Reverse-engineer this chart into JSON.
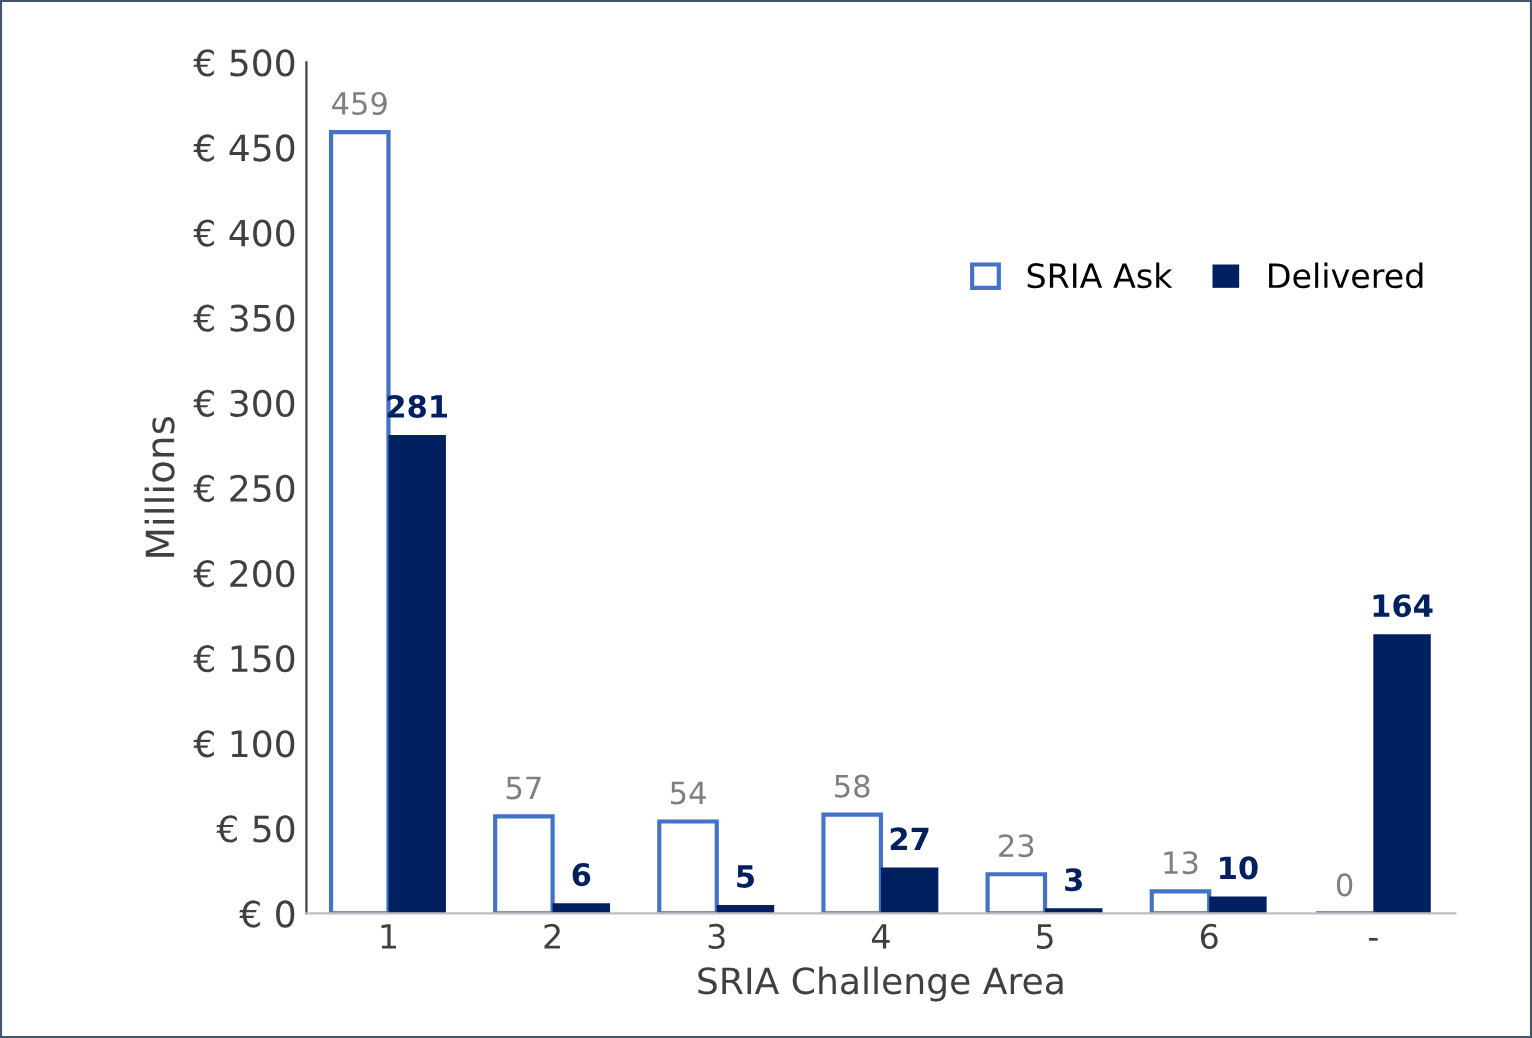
{
  "chart_data": {
    "type": "bar",
    "xlabel": "SRIA Challenge Area",
    "ylabel": "Millions",
    "categories": [
      "1",
      "2",
      "3",
      "4",
      "5",
      "6",
      "-"
    ],
    "series": [
      {
        "name": "SRIA Ask",
        "color": "#4472c4",
        "values": [
          459,
          57,
          54,
          58,
          23,
          13,
          0
        ]
      },
      {
        "name": "Delivered",
        "color": "#002060",
        "values": [
          281,
          6,
          5,
          27,
          3,
          10,
          164
        ]
      }
    ],
    "ylim": [
      0,
      500
    ],
    "yticks": [
      {
        "value": 0,
        "label": "€ 0"
      },
      {
        "value": 50,
        "label": "€ 50"
      },
      {
        "value": 100,
        "label": "€ 100"
      },
      {
        "value": 150,
        "label": "€ 150"
      },
      {
        "value": 200,
        "label": "€ 200"
      },
      {
        "value": 250,
        "label": "€ 250"
      },
      {
        "value": 300,
        "label": "€ 300"
      },
      {
        "value": 350,
        "label": "€ 350"
      },
      {
        "value": 400,
        "label": "€ 400"
      },
      {
        "value": 450,
        "label": "€ 450"
      },
      {
        "value": 500,
        "label": "€ 500"
      }
    ],
    "grid": false,
    "legend": "top right",
    "data_labels": true
  }
}
